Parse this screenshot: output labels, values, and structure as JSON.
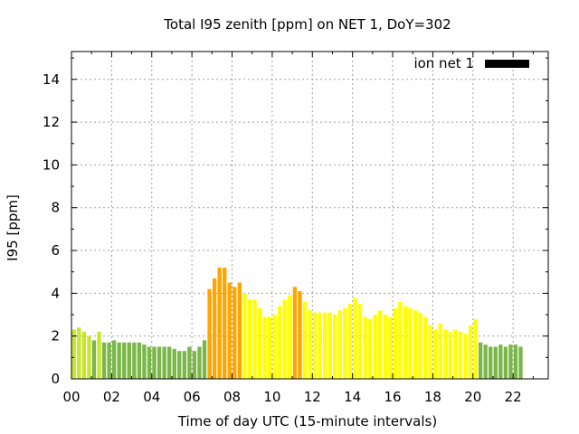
{
  "chart_data": {
    "type": "bar",
    "title": "Total I95 zenith [ppm] on NET 1, DoY=302",
    "xlabel": "Time of day UTC (15-minute intervals)",
    "ylabel": "I95 [ppm]",
    "ylim": [
      0,
      15.3
    ],
    "xlim": [
      0,
      23.75
    ],
    "xticks": [
      "00",
      "02",
      "04",
      "06",
      "08",
      "10",
      "12",
      "14",
      "16",
      "18",
      "20",
      "22"
    ],
    "yticks": [
      "0",
      "2",
      "4",
      "6",
      "8",
      "10",
      "12",
      "14"
    ],
    "legend": {
      "label": "ion net 1",
      "color": "#000000",
      "position": "top-right"
    },
    "colors": {
      "green": "#7ab648",
      "yellowgreen": "#c8e62a",
      "yellow": "#ffff00",
      "orange": "#ffa500"
    },
    "interval_hours": 0.25,
    "values": [
      2.3,
      2.4,
      2.2,
      2.0,
      1.8,
      2.2,
      1.7,
      1.7,
      1.8,
      1.7,
      1.7,
      1.7,
      1.7,
      1.7,
      1.6,
      1.5,
      1.5,
      1.5,
      1.5,
      1.5,
      1.4,
      1.3,
      1.3,
      1.5,
      1.3,
      1.5,
      1.8,
      4.2,
      4.7,
      5.2,
      5.2,
      4.5,
      4.3,
      4.5,
      4.0,
      3.7,
      3.7,
      3.3,
      2.9,
      2.9,
      3.0,
      3.4,
      3.7,
      3.9,
      4.3,
      4.1,
      3.6,
      3.2,
      3.1,
      3.1,
      3.1,
      3.1,
      3.0,
      3.2,
      3.3,
      3.5,
      3.8,
      3.5,
      2.9,
      2.8,
      3.0,
      3.2,
      3.0,
      2.9,
      3.3,
      3.6,
      3.4,
      3.3,
      3.2,
      3.1,
      2.9,
      2.5,
      2.3,
      2.6,
      2.3,
      2.2,
      2.3,
      2.2,
      2.1,
      2.5,
      2.8,
      1.7,
      1.6,
      1.5,
      1.5,
      1.6,
      1.5,
      1.6,
      1.6,
      1.5
    ],
    "bar_colors": [
      "yellowgreen",
      "yellowgreen",
      "yellowgreen",
      "yellowgreen",
      "green",
      "yellowgreen",
      "green",
      "green",
      "green",
      "green",
      "green",
      "green",
      "green",
      "green",
      "green",
      "green",
      "green",
      "green",
      "green",
      "green",
      "green",
      "green",
      "green",
      "green",
      "green",
      "green",
      "green",
      "orange",
      "orange",
      "orange",
      "orange",
      "orange",
      "orange",
      "orange",
      "yellow",
      "yellow",
      "yellow",
      "yellow",
      "yellow",
      "yellow",
      "yellow",
      "yellow",
      "yellow",
      "yellow",
      "orange",
      "orange",
      "yellow",
      "yellow",
      "yellow",
      "yellow",
      "yellow",
      "yellow",
      "yellow",
      "yellow",
      "yellow",
      "yellow",
      "yellow",
      "yellow",
      "yellow",
      "yellow",
      "yellow",
      "yellow",
      "yellow",
      "yellow",
      "yellow",
      "yellow",
      "yellow",
      "yellow",
      "yellow",
      "yellow",
      "yellow",
      "yellow",
      "yellow",
      "yellow",
      "yellow",
      "yellow",
      "yellow",
      "yellow",
      "yellow",
      "yellow",
      "yellow",
      "green",
      "green",
      "green",
      "green",
      "green",
      "green",
      "green",
      "green",
      "green"
    ]
  }
}
